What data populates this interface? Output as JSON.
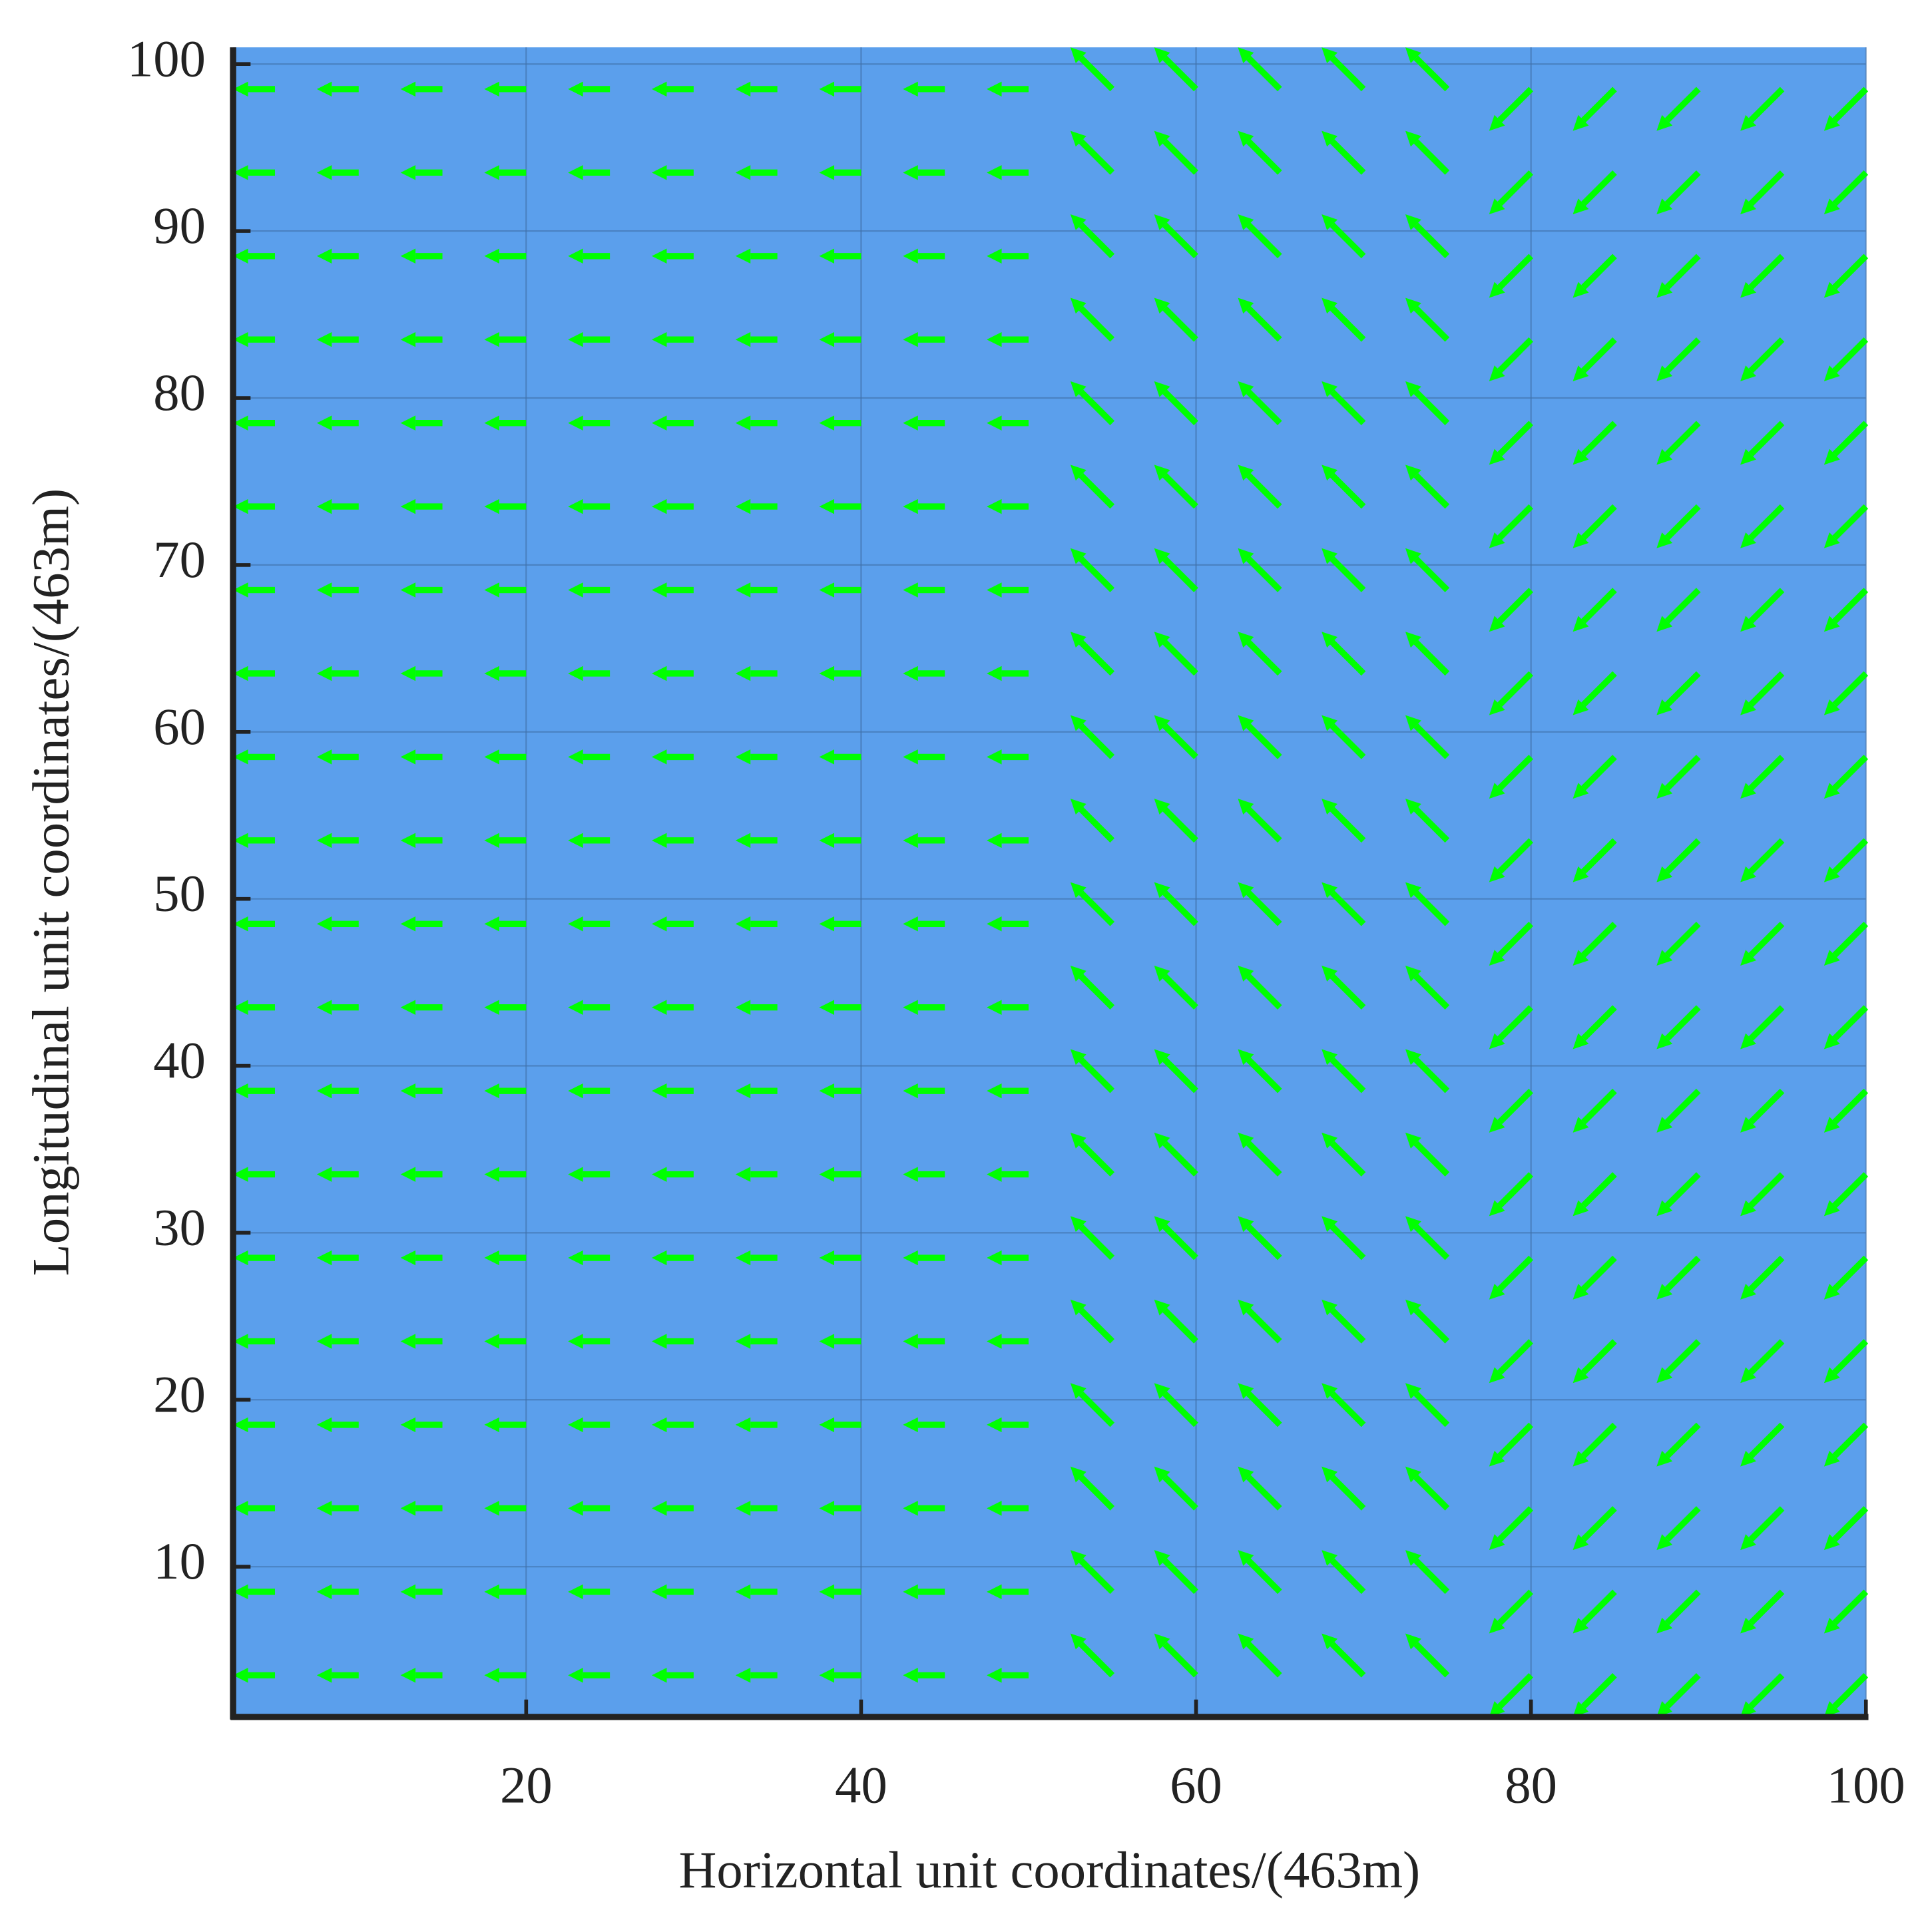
{
  "chart_data": {
    "type": "quiver",
    "xlabel": "Horizontal unit coordinates/(463m)",
    "ylabel": "Longitudinal unit coordinates/(463m)",
    "xlim": [
      2.5,
      100
    ],
    "ylim": [
      1,
      101
    ],
    "xticks": [
      20,
      40,
      60,
      80,
      100
    ],
    "yticks": [
      10,
      20,
      30,
      40,
      50,
      60,
      70,
      80,
      90,
      100
    ],
    "grid": true,
    "background": "#5b9fec",
    "y": [
      3.5,
      8.5,
      13.5,
      18.5,
      23.5,
      28.5,
      33.5,
      38.5,
      43.5,
      48.5,
      53.5,
      58.5,
      63.5,
      68.5,
      73.5,
      78.5,
      83.5,
      88.5,
      93.5,
      98.5
    ],
    "series": [
      {
        "color": "#00ff00",
        "x": [
          5,
          10,
          15,
          20,
          25,
          30,
          35,
          40,
          45,
          50
        ],
        "u": -2.5,
        "v": 0
      },
      {
        "color": "#00ff00",
        "x": [
          55,
          60,
          65,
          70,
          75
        ],
        "u": -2.5,
        "v": 2.5
      },
      {
        "color": "#00ff00",
        "x": [
          80,
          85,
          90,
          95,
          100
        ],
        "u": -2.5,
        "v": -2.5
      }
    ]
  }
}
